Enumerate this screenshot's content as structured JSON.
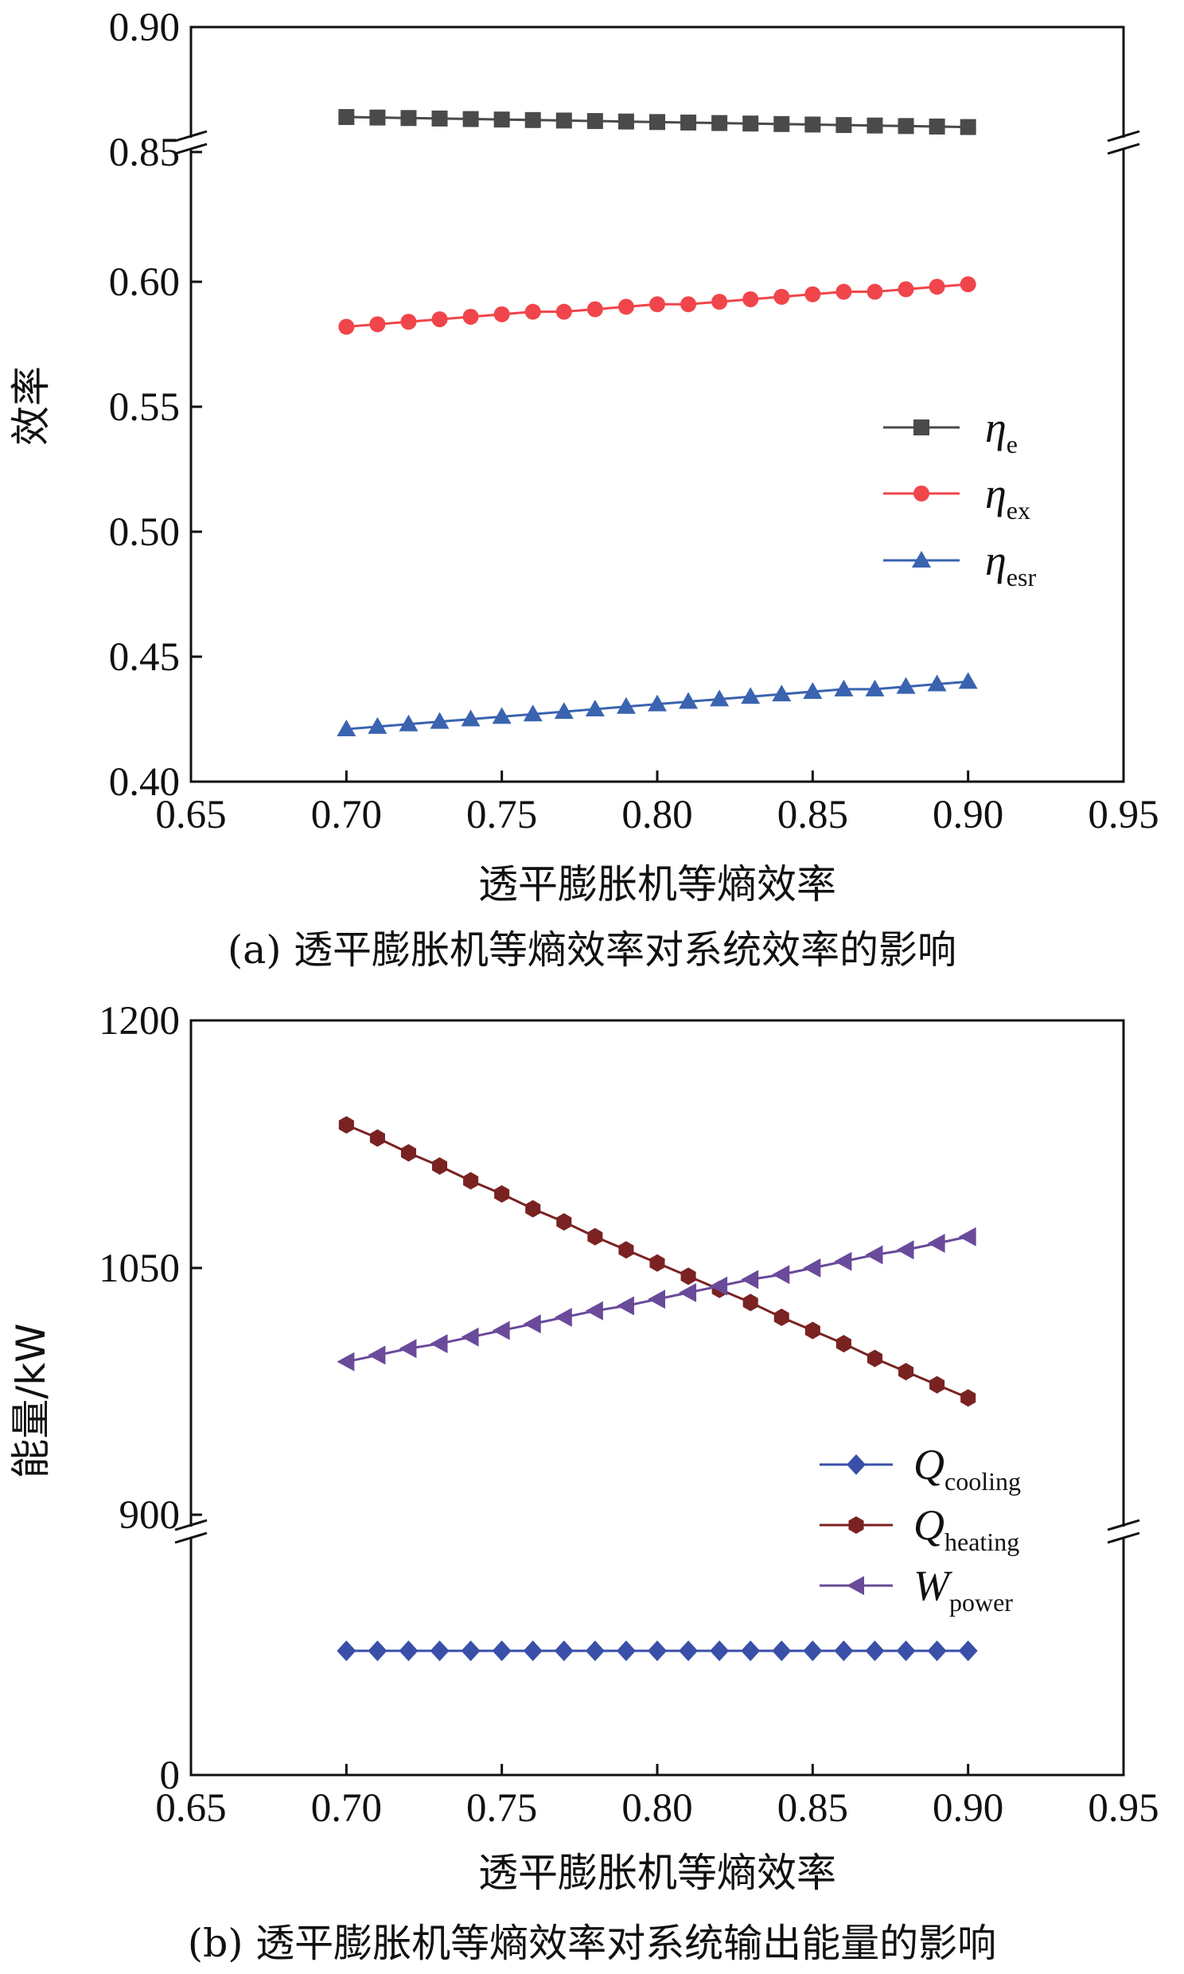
{
  "chart_data": [
    {
      "type": "line",
      "panel": "a",
      "title": "(a) 透平膨胀机等熵效率对系统效率的影响",
      "xlabel": "透平膨胀机等熵效率",
      "ylabel": "效率",
      "xlim": [
        0.65,
        0.95
      ],
      "xticks": [
        "0.65",
        "0.70",
        "0.75",
        "0.80",
        "0.85",
        "0.90",
        "0.95"
      ],
      "ylim": [
        0.4,
        0.9
      ],
      "yticks": [
        "0.40",
        "0.45",
        "0.50",
        "0.55",
        "0.60",
        "0.85",
        "0.90"
      ],
      "axis_break": "between 0.60 and 0.85",
      "legend_position": "right-middle",
      "x": [
        0.7,
        0.71,
        0.72,
        0.73,
        0.74,
        0.75,
        0.76,
        0.77,
        0.78,
        0.79,
        0.8,
        0.81,
        0.82,
        0.83,
        0.84,
        0.85,
        0.86,
        0.87,
        0.88,
        0.89,
        0.9
      ],
      "series": [
        {
          "name": "η",
          "sub": "e",
          "marker": "square",
          "color": "#4a4a4a",
          "values": [
            0.864,
            0.8638,
            0.8636,
            0.8634,
            0.8632,
            0.863,
            0.8628,
            0.8626,
            0.8624,
            0.8622,
            0.862,
            0.8618,
            0.8616,
            0.8614,
            0.8612,
            0.861,
            0.8608,
            0.8606,
            0.8604,
            0.8602,
            0.86
          ]
        },
        {
          "name": "η",
          "sub": "ex",
          "marker": "circle",
          "color": "#f0454a",
          "values": [
            0.582,
            0.583,
            0.584,
            0.585,
            0.586,
            0.587,
            0.588,
            0.588,
            0.589,
            0.59,
            0.591,
            0.591,
            0.592,
            0.593,
            0.594,
            0.595,
            0.596,
            0.596,
            0.597,
            0.598,
            0.599
          ]
        },
        {
          "name": "η",
          "sub": "esr",
          "marker": "triangle",
          "color": "#3a63b0",
          "values": [
            0.421,
            0.422,
            0.423,
            0.424,
            0.425,
            0.426,
            0.427,
            0.428,
            0.429,
            0.43,
            0.431,
            0.432,
            0.433,
            0.434,
            0.435,
            0.436,
            0.437,
            0.437,
            0.438,
            0.439,
            0.44
          ]
        }
      ]
    },
    {
      "type": "line",
      "panel": "b",
      "title": "(b) 透平膨胀机等熵效率对系统输出能量的影响",
      "xlabel": "透平膨胀机等熵效率",
      "ylabel": "能量/kW",
      "xlim": [
        0.65,
        0.95
      ],
      "xticks": [
        "0.65",
        "0.70",
        "0.75",
        "0.80",
        "0.85",
        "0.90",
        "0.95"
      ],
      "ylim": [
        0,
        1200
      ],
      "yticks": [
        "0",
        "900",
        "1050",
        "1200"
      ],
      "axis_break": "between 0 and 900",
      "legend_position": "right-lower",
      "x": [
        0.7,
        0.71,
        0.72,
        0.73,
        0.74,
        0.75,
        0.76,
        0.77,
        0.78,
        0.79,
        0.8,
        0.81,
        0.82,
        0.83,
        0.84,
        0.85,
        0.86,
        0.87,
        0.88,
        0.89,
        0.9
      ],
      "series": [
        {
          "name": "Q",
          "sub": "cooling",
          "marker": "diamond",
          "color": "#3a4fa8",
          "values": [
            485,
            485,
            485,
            485,
            485,
            485,
            485,
            485,
            485,
            485,
            485,
            485,
            485,
            485,
            485,
            485,
            485,
            485,
            485,
            485,
            485
          ]
        },
        {
          "name": "Q",
          "sub": "heating",
          "marker": "hexagon",
          "color": "#7a2222",
          "values": [
            1137,
            1129,
            1120,
            1112,
            1103,
            1095,
            1086,
            1078,
            1069,
            1061,
            1053,
            1045,
            1037,
            1029,
            1020,
            1012,
            1004,
            995,
            987,
            979,
            971
          ]
        },
        {
          "name": "W",
          "sub": "power",
          "marker": "triangle-left",
          "color": "#6a4a9a",
          "values": [
            993,
            997,
            1001,
            1004,
            1008,
            1012,
            1016,
            1020,
            1024,
            1027,
            1031,
            1035,
            1039,
            1043,
            1046,
            1050,
            1054,
            1058,
            1061,
            1065,
            1069
          ]
        }
      ]
    }
  ]
}
